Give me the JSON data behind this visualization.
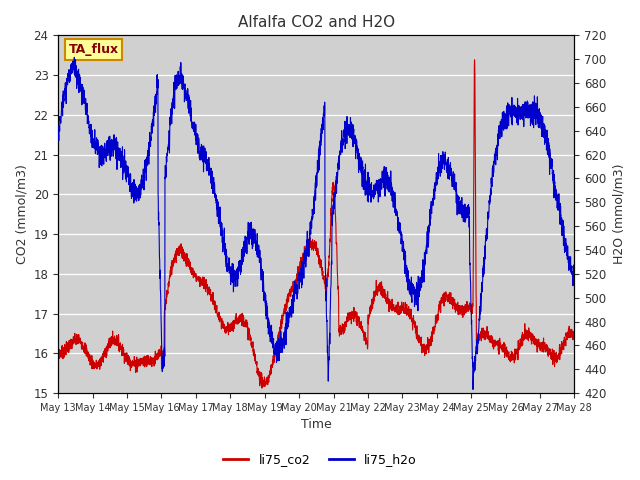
{
  "title": "Alfalfa CO2 and H2O",
  "xlabel": "Time",
  "ylabel_left": "CO2 (mmol/m3)",
  "ylabel_right": "H2O (mmol/m3)",
  "ylim_left": [
    15.0,
    24.0
  ],
  "ylim_right": [
    420,
    720
  ],
  "legend_label1": "li75_co2",
  "legend_label2": "li75_h2o",
  "color_co2": "#cc0000",
  "color_h2o": "#0000cc",
  "bg_color": "#d0d0d0",
  "annotation_text": "TA_flux",
  "annotation_bg": "#ffff99",
  "annotation_border": "#cc8800",
  "x_tick_labels": [
    "May 13",
    "May 14",
    "May 15",
    "May 16",
    "May 17",
    "May 18",
    "May 19",
    "May 20",
    "May 21",
    "May 22",
    "May 23",
    "May 24",
    "May 25",
    "May 26",
    "May 27",
    "May 28"
  ],
  "yticks_left": [
    15.0,
    16.0,
    17.0,
    18.0,
    19.0,
    20.0,
    21.0,
    22.0,
    23.0,
    24.0
  ],
  "yticks_right": [
    420,
    440,
    460,
    480,
    500,
    520,
    540,
    560,
    580,
    600,
    620,
    640,
    660,
    680,
    700,
    720
  ]
}
